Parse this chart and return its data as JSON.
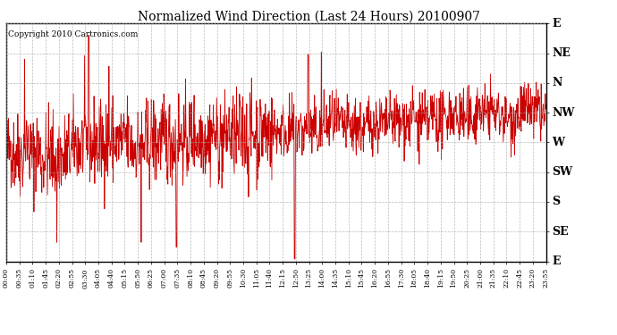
{
  "title": "Normalized Wind Direction (Last 24 Hours) 20100907",
  "copyright": "Copyright 2010 Cartronics.com",
  "background_color": "#ffffff",
  "line_color": "#cc0000",
  "grid_color": "#aaaaaa",
  "ytick_labels": [
    "E",
    "NE",
    "N",
    "NW",
    "W",
    "SW",
    "S",
    "SE",
    "E"
  ],
  "ytick_values": [
    1.0,
    0.875,
    0.75,
    0.625,
    0.5,
    0.375,
    0.25,
    0.125,
    0.0
  ],
  "xtick_labels": [
    "00:00",
    "00:35",
    "01:10",
    "01:45",
    "02:20",
    "02:55",
    "03:30",
    "04:05",
    "04:40",
    "05:15",
    "05:50",
    "06:25",
    "07:00",
    "07:35",
    "08:10",
    "08:45",
    "09:20",
    "09:55",
    "10:30",
    "11:05",
    "11:40",
    "12:15",
    "12:50",
    "13:25",
    "14:00",
    "14:35",
    "15:10",
    "15:45",
    "16:20",
    "16:55",
    "17:30",
    "18:05",
    "18:40",
    "19:15",
    "19:50",
    "20:25",
    "21:00",
    "21:35",
    "22:10",
    "22:45",
    "23:20",
    "23:55"
  ],
  "ylim": [
    0.0,
    1.0
  ],
  "seed": 42,
  "n_points": 1440
}
